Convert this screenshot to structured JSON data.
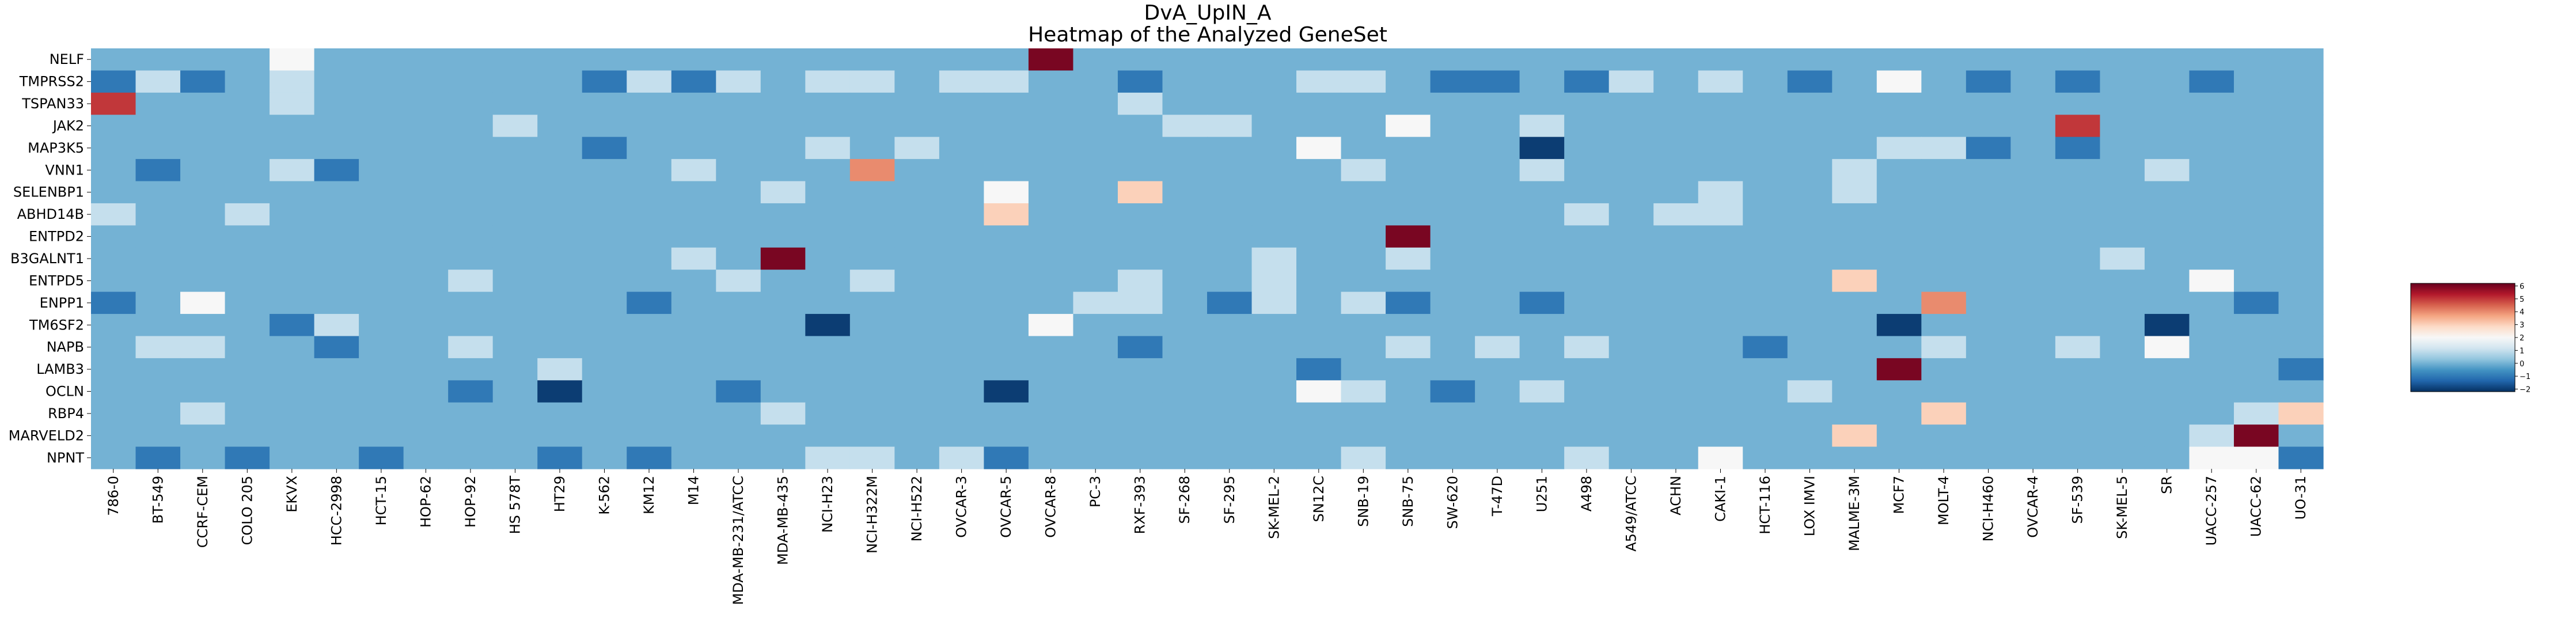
{
  "chart_data": {
    "type": "heatmap",
    "title": "DvA_UpIN_A",
    "subtitle": "Heatmap of the Analyzed GeneSet",
    "rows": [
      "NELF",
      "TMPRSS2",
      "TSPAN33",
      "JAK2",
      "MAP3K5",
      "VNN1",
      "SELENBP1",
      "ABHD14B",
      "ENTPD2",
      "B3GALNT1",
      "ENTPD5",
      "ENPP1",
      "TM6SF2",
      "NAPB",
      "LAMB3",
      "OCLN",
      "RBP4",
      "MARVELD2",
      "NPNT"
    ],
    "columns": [
      "786-0",
      "BT-549",
      "CCRF-CEM",
      "COLO 205",
      "EKVX",
      "HCC-2998",
      "HCT-15",
      "HOP-62",
      "HOP-92",
      "HS 578T",
      "HT29",
      "K-562",
      "KM12",
      "M14",
      "MDA-MB-231/ATCC",
      "MDA-MB-435",
      "NCI-H23",
      "NCI-H322M",
      "NCI-H522",
      "OVCAR-3",
      "OVCAR-5",
      "OVCAR-8",
      "PC-3",
      "RXF-393",
      "SF-268",
      "SF-295",
      "SK-MEL-2",
      "SN12C",
      "SNB-19",
      "SNB-75",
      "SW-620",
      "T-47D",
      "U251",
      "A498",
      "A549/ATCC",
      "ACHN",
      "CAKI-1",
      "HCT-116",
      "LOX IMVI",
      "MALME-3M",
      "MCF7",
      "MOLT-4",
      "NCI-H460",
      "OVCAR-4",
      "SF-539",
      "SK-MEL-5",
      "SR",
      "UACC-257",
      "UACC-62",
      "UO-31"
    ],
    "values": [
      [
        0,
        0,
        0,
        0,
        2,
        0,
        0,
        0,
        0,
        0,
        0,
        0,
        0,
        0,
        0,
        0,
        0,
        0,
        0,
        0,
        0,
        6,
        0,
        0,
        0,
        0,
        0,
        0,
        0,
        0,
        0,
        0,
        0,
        0,
        0,
        0,
        0,
        0,
        0,
        0,
        0,
        0,
        0,
        0,
        0,
        0,
        0,
        0,
        0,
        0
      ],
      [
        -1,
        1,
        -1,
        0,
        1,
        0,
        0,
        0,
        0,
        0,
        0,
        -1,
        1,
        -1,
        1,
        0,
        1,
        1,
        0,
        1,
        1,
        0,
        0,
        -1,
        0,
        0,
        0,
        1,
        1,
        0,
        -1,
        -1,
        0,
        -1,
        1,
        0,
        1,
        0,
        -1,
        0,
        2,
        0,
        -1,
        0,
        -1,
        0,
        0,
        -1,
        0,
        0
      ],
      [
        5,
        0,
        0,
        0,
        1,
        0,
        0,
        0,
        0,
        0,
        0,
        0,
        0,
        0,
        0,
        0,
        0,
        0,
        0,
        0,
        0,
        0,
        0,
        1,
        0,
        0,
        0,
        0,
        0,
        0,
        0,
        0,
        0,
        0,
        0,
        0,
        0,
        0,
        0,
        0,
        0,
        0,
        0,
        0,
        0,
        0,
        0,
        0,
        0,
        0
      ],
      [
        0,
        0,
        0,
        0,
        0,
        0,
        0,
        0,
        0,
        1,
        0,
        0,
        0,
        0,
        0,
        0,
        0,
        0,
        0,
        0,
        0,
        0,
        0,
        0,
        1,
        1,
        0,
        0,
        0,
        2,
        0,
        0,
        1,
        0,
        0,
        0,
        0,
        0,
        0,
        0,
        0,
        0,
        0,
        0,
        5,
        0,
        0,
        0,
        0,
        0
      ],
      [
        0,
        0,
        0,
        0,
        0,
        0,
        0,
        0,
        0,
        0,
        0,
        -1,
        0,
        0,
        0,
        0,
        1,
        0,
        1,
        0,
        0,
        0,
        0,
        0,
        0,
        0,
        0,
        2,
        0,
        0,
        0,
        0,
        -2,
        0,
        0,
        0,
        0,
        0,
        0,
        0,
        1,
        1,
        -1,
        0,
        -1,
        0,
        0,
        0,
        0,
        0
      ],
      [
        0,
        -1,
        0,
        0,
        1,
        -1,
        0,
        0,
        0,
        0,
        0,
        0,
        0,
        1,
        0,
        0,
        0,
        4,
        0,
        0,
        0,
        0,
        0,
        0,
        0,
        0,
        0,
        0,
        1,
        0,
        0,
        0,
        1,
        0,
        0,
        0,
        0,
        0,
        0,
        1,
        0,
        0,
        0,
        0,
        0,
        0,
        1,
        0,
        0,
        0
      ],
      [
        0,
        0,
        0,
        0,
        0,
        0,
        0,
        0,
        0,
        0,
        0,
        0,
        0,
        0,
        0,
        1,
        0,
        0,
        0,
        0,
        2,
        0,
        0,
        3,
        0,
        0,
        0,
        0,
        0,
        0,
        0,
        0,
        0,
        0,
        0,
        0,
        1,
        0,
        0,
        1,
        0,
        0,
        0,
        0,
        0,
        0,
        0,
        0,
        0,
        0
      ],
      [
        1,
        0,
        0,
        1,
        0,
        0,
        0,
        0,
        0,
        0,
        0,
        0,
        0,
        0,
        0,
        0,
        0,
        0,
        0,
        0,
        3,
        0,
        0,
        0,
        0,
        0,
        0,
        0,
        0,
        0,
        0,
        0,
        0,
        1,
        0,
        1,
        1,
        0,
        0,
        0,
        0,
        0,
        0,
        0,
        0,
        0,
        0,
        0,
        0,
        0
      ],
      [
        0,
        0,
        0,
        0,
        0,
        0,
        0,
        0,
        0,
        0,
        0,
        0,
        0,
        0,
        0,
        0,
        0,
        0,
        0,
        0,
        0,
        0,
        0,
        0,
        0,
        0,
        0,
        0,
        0,
        6,
        0,
        0,
        0,
        0,
        0,
        0,
        0,
        0,
        0,
        0,
        0,
        0,
        0,
        0,
        0,
        0,
        0,
        0,
        0,
        0
      ],
      [
        0,
        0,
        0,
        0,
        0,
        0,
        0,
        0,
        0,
        0,
        0,
        0,
        0,
        1,
        0,
        6,
        0,
        0,
        0,
        0,
        0,
        0,
        0,
        0,
        0,
        0,
        1,
        0,
        0,
        1,
        0,
        0,
        0,
        0,
        0,
        0,
        0,
        0,
        0,
        0,
        0,
        0,
        0,
        0,
        0,
        1,
        0,
        0,
        0,
        0
      ],
      [
        0,
        0,
        0,
        0,
        0,
        0,
        0,
        0,
        1,
        0,
        0,
        0,
        0,
        0,
        1,
        0,
        0,
        1,
        0,
        0,
        0,
        0,
        0,
        1,
        0,
        0,
        1,
        0,
        0,
        0,
        0,
        0,
        0,
        0,
        0,
        0,
        0,
        0,
        0,
        3,
        0,
        0,
        0,
        0,
        0,
        0,
        0,
        2,
        0,
        0
      ],
      [
        -1,
        0,
        2,
        0,
        0,
        0,
        0,
        0,
        0,
        0,
        0,
        0,
        -1,
        0,
        0,
        0,
        0,
        0,
        0,
        0,
        0,
        0,
        1,
        1,
        0,
        -1,
        1,
        0,
        1,
        -1,
        0,
        0,
        -1,
        0,
        0,
        0,
        0,
        0,
        0,
        0,
        0,
        4,
        0,
        0,
        0,
        0,
        0,
        0,
        -1,
        0
      ],
      [
        0,
        0,
        0,
        0,
        -1,
        1,
        0,
        0,
        0,
        0,
        0,
        0,
        0,
        0,
        0,
        0,
        -2,
        0,
        0,
        0,
        0,
        2,
        0,
        0,
        0,
        0,
        0,
        0,
        0,
        0,
        0,
        0,
        0,
        0,
        0,
        0,
        0,
        0,
        0,
        0,
        -2,
        0,
        0,
        0,
        0,
        0,
        -2,
        0,
        0,
        0
      ],
      [
        0,
        1,
        1,
        0,
        0,
        -1,
        0,
        0,
        1,
        0,
        0,
        0,
        0,
        0,
        0,
        0,
        0,
        0,
        0,
        0,
        0,
        0,
        0,
        -1,
        0,
        0,
        0,
        0,
        0,
        1,
        0,
        1,
        0,
        1,
        0,
        0,
        0,
        -1,
        0,
        0,
        0,
        1,
        0,
        0,
        1,
        0,
        2,
        0,
        0,
        0
      ],
      [
        0,
        0,
        0,
        0,
        0,
        0,
        0,
        0,
        0,
        0,
        1,
        0,
        0,
        0,
        0,
        0,
        0,
        0,
        0,
        0,
        0,
        0,
        0,
        0,
        0,
        0,
        0,
        -1,
        0,
        0,
        0,
        0,
        0,
        0,
        0,
        0,
        0,
        0,
        0,
        0,
        6,
        0,
        0,
        0,
        0,
        0,
        0,
        0,
        0,
        -1
      ],
      [
        0,
        0,
        0,
        0,
        0,
        0,
        0,
        0,
        -1,
        0,
        -2,
        0,
        0,
        0,
        -1,
        0,
        0,
        0,
        0,
        0,
        -2,
        0,
        0,
        0,
        0,
        0,
        0,
        2,
        1,
        0,
        -1,
        0,
        1,
        0,
        0,
        0,
        0,
        0,
        1,
        0,
        0,
        0,
        0,
        0,
        0,
        0,
        0,
        0,
        0,
        0
      ],
      [
        0,
        0,
        1,
        0,
        0,
        0,
        0,
        0,
        0,
        0,
        0,
        0,
        0,
        0,
        0,
        1,
        0,
        0,
        0,
        0,
        0,
        0,
        0,
        0,
        0,
        0,
        0,
        0,
        0,
        0,
        0,
        0,
        0,
        0,
        0,
        0,
        0,
        0,
        0,
        0,
        0,
        3,
        0,
        0,
        0,
        0,
        0,
        0,
        1,
        3
      ],
      [
        0,
        0,
        0,
        0,
        0,
        0,
        0,
        0,
        0,
        0,
        0,
        0,
        0,
        0,
        0,
        0,
        0,
        0,
        0,
        0,
        0,
        0,
        0,
        0,
        0,
        0,
        0,
        0,
        0,
        0,
        0,
        0,
        0,
        0,
        0,
        0,
        0,
        0,
        0,
        3,
        0,
        0,
        0,
        0,
        0,
        0,
        0,
        1,
        6,
        0
      ],
      [
        0,
        -1,
        0,
        -1,
        0,
        0,
        -1,
        0,
        0,
        0,
        -1,
        0,
        -1,
        0,
        0,
        0,
        1,
        1,
        0,
        1,
        -1,
        0,
        0,
        0,
        0,
        0,
        0,
        0,
        1,
        0,
        0,
        0,
        0,
        1,
        0,
        0,
        2,
        0,
        0,
        0,
        0,
        0,
        0,
        0,
        0,
        0,
        0,
        2,
        2,
        -1
      ]
    ],
    "colorbar": {
      "ticks": [
        6,
        5,
        4,
        3,
        2,
        1,
        0,
        -1,
        -2
      ],
      "range": [
        -2.2,
        6.2
      ],
      "colormap": "RdBu_r"
    },
    "xlabel": "",
    "ylabel": ""
  }
}
